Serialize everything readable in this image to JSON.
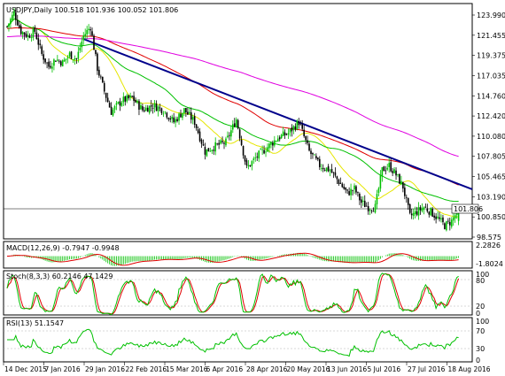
{
  "main_panel": {
    "symbol_info": "USDJPY,Daily  100.518 101.936 100.052 101.806",
    "current_price_label": "101.806",
    "price_ticks": [
      "123.990",
      "121.455",
      "119.375",
      "117.035",
      "114.760",
      "112.420",
      "110.080",
      "107.805",
      "105.465",
      "103.190",
      "100.850",
      "98.575"
    ]
  },
  "macd_panel": {
    "label": "MACD(12,26,9) -0.7947 -0.9948",
    "ticks": [
      "2.2826",
      "-1.8024"
    ]
  },
  "stoch_panel": {
    "label": "Stoch(8,3,3) 60.2146 47.1429",
    "ticks": [
      "100",
      "80",
      "20",
      "0"
    ]
  },
  "rsi_panel": {
    "label": "RSI(13) 51.1547",
    "ticks": [
      "100",
      "70",
      "30",
      "0"
    ]
  },
  "time_axis": [
    "14 Dec 2015",
    "7 Jan 2016",
    "29 Jan 2016",
    "22 Feb 2016",
    "15 Mar 2016",
    "6 Apr 2016",
    "28 Apr 2016",
    "20 May 2016",
    "13 Jun 2016",
    "5 Jul 2016",
    "27 Jul 2016",
    "18 Aug 2016"
  ],
  "colors": {
    "bull_candle": "#00c000",
    "bear_candle": "#000000",
    "trendline": "#00008b",
    "ma_fast": "#e6e600",
    "ma_mid": "#00c000",
    "ma_slow": "#e00000",
    "ma_long": "#e000e0",
    "macd_hist": "#00c000",
    "macd_signal": "#e00000",
    "stoch_main": "#00c000",
    "stoch_signal": "#e00000",
    "rsi_line": "#00c000"
  },
  "chart_data": {
    "type": "candlestick",
    "symbol": "USDJPY",
    "timeframe": "Daily",
    "last_bar": {
      "open": 100.518,
      "high": 101.936,
      "low": 100.052,
      "close": 101.806
    },
    "ylim": [
      98.575,
      123.99
    ],
    "close_path": [
      [
        0,
        121.5
      ],
      [
        4,
        123.0
      ],
      [
        8,
        121.0
      ],
      [
        12,
        120.5
      ],
      [
        16,
        121.0
      ],
      [
        20,
        118.5
      ],
      [
        24,
        117.2
      ],
      [
        28,
        118.0
      ],
      [
        32,
        117.6
      ],
      [
        36,
        118.5
      ],
      [
        40,
        118.0
      ],
      [
        44,
        120.5
      ],
      [
        48,
        121.5
      ],
      [
        52,
        117.0
      ],
      [
        56,
        114.5
      ],
      [
        60,
        112.3
      ],
      [
        66,
        113.5
      ],
      [
        72,
        113.8
      ],
      [
        78,
        112.5
      ],
      [
        84,
        113.0
      ],
      [
        90,
        112.5
      ],
      [
        96,
        111.2
      ],
      [
        102,
        112.5
      ],
      [
        108,
        111.2
      ],
      [
        114,
        108.0
      ],
      [
        120,
        108.6
      ],
      [
        126,
        109.0
      ],
      [
        132,
        111.5
      ],
      [
        138,
        106.2
      ],
      [
        144,
        107.5
      ],
      [
        150,
        108.5
      ],
      [
        156,
        109.5
      ],
      [
        162,
        110.0
      ],
      [
        168,
        111.2
      ],
      [
        174,
        108.0
      ],
      [
        180,
        106.5
      ],
      [
        186,
        106.0
      ],
      [
        192,
        104.5
      ],
      [
        196,
        103.5
      ],
      [
        200,
        104.0
      ],
      [
        204,
        102.5
      ],
      [
        208,
        102.0
      ],
      [
        212,
        102.0
      ],
      [
        216,
        106.0
      ],
      [
        220,
        106.5
      ],
      [
        224,
        105.5
      ],
      [
        228,
        104.2
      ],
      [
        232,
        101.0
      ],
      [
        236,
        101.5
      ],
      [
        240,
        102.0
      ],
      [
        244,
        101.5
      ],
      [
        248,
        100.8
      ],
      [
        252,
        100.0
      ],
      [
        256,
        100.5
      ],
      [
        260,
        101.8
      ]
    ],
    "indicators": [
      {
        "name": "MACD(12,26,9)",
        "values": [
          -0.7947,
          -0.9948
        ],
        "range": [
          -1.8024,
          2.2826
        ]
      },
      {
        "name": "Stoch(8,3,3)",
        "values": [
          60.2146,
          47.1429
        ],
        "levels": [
          20,
          80
        ]
      },
      {
        "name": "RSI(13)",
        "values": [
          51.1547
        ],
        "levels": [
          30,
          70
        ]
      }
    ]
  }
}
